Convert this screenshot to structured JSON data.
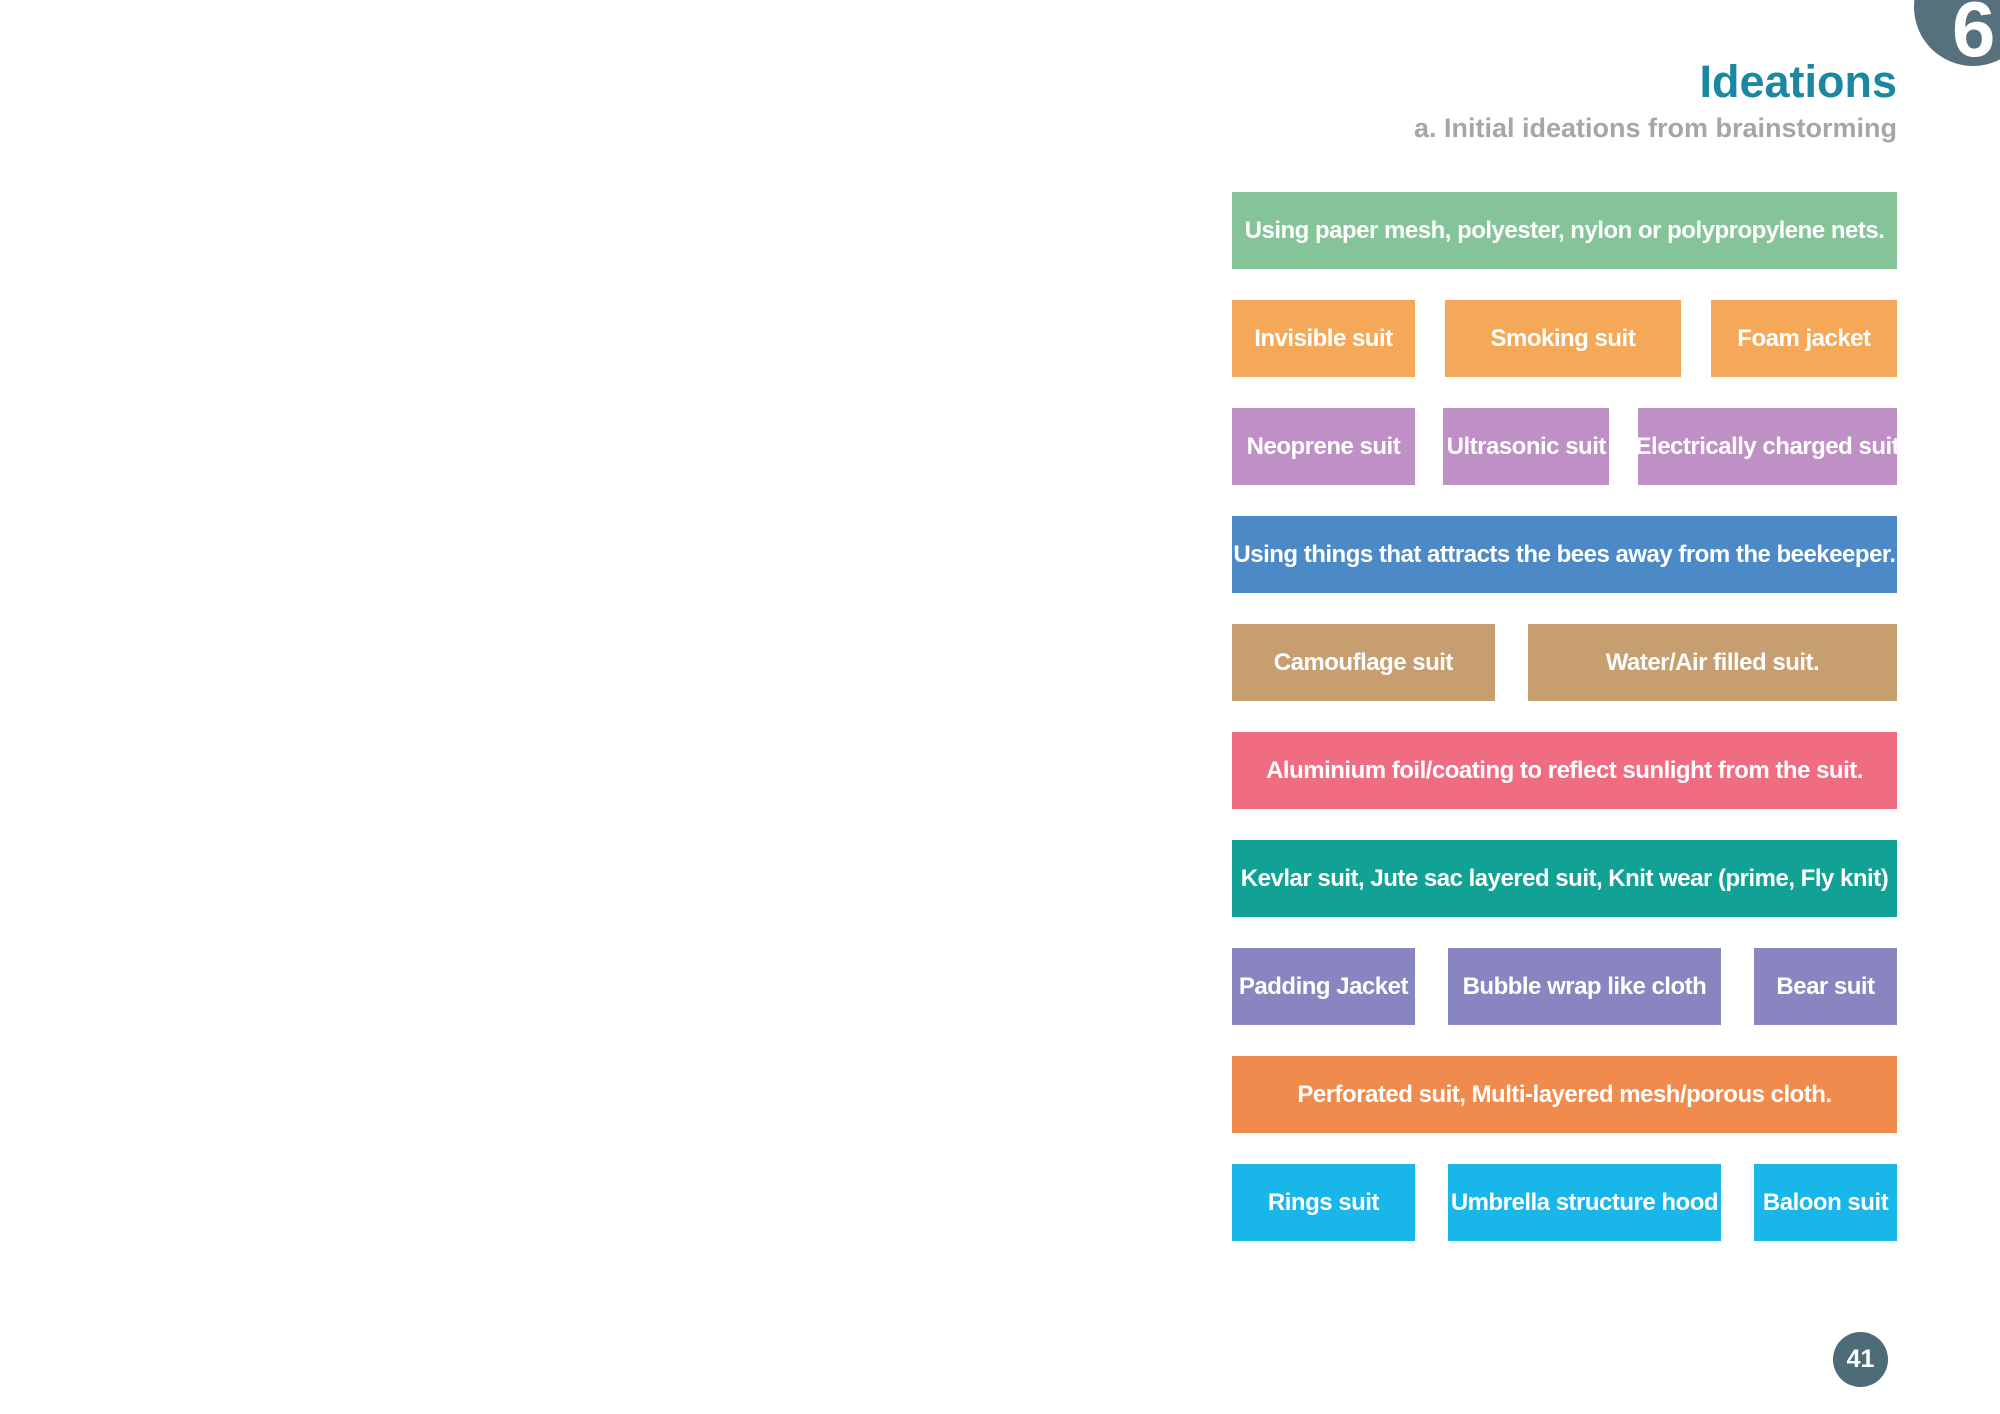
{
  "page": {
    "chapter_badge": "6",
    "page_number": "41",
    "header": {
      "title": "Ideations",
      "subtitle": "a. Initial ideations from brainstorming"
    }
  },
  "colors": {
    "title_teal": "#1b87a0",
    "subtitle_gray": "#a6a6a6",
    "corner_badge_slate": "#56707e",
    "page_badge_slate": "#4e6b79",
    "green": "#85c498",
    "orange": "#f5a958",
    "lilac": "#bf90c5",
    "blue": "#4b8ac7",
    "tan": "#c79e6f",
    "pink": "#f06c80",
    "teal": "#12a295",
    "periwinkle": "#8885c0",
    "dark_orange": "#f08b4d",
    "cyan": "#19b6e9"
  },
  "ideations": {
    "rows": [
      {
        "boxes": [
          {
            "label": "Using paper mesh, polyester, nylon or polypropylene nets."
          }
        ]
      },
      {
        "boxes": [
          {
            "label": "Invisible suit"
          },
          {
            "label": "Smoking suit"
          },
          {
            "label": "Foam jacket"
          }
        ]
      },
      {
        "boxes": [
          {
            "label": "Neoprene suit"
          },
          {
            "label": "Ultrasonic suit"
          },
          {
            "label": "Electrically charged suit"
          }
        ]
      },
      {
        "boxes": [
          {
            "label": "Using things that attracts the bees away from the beekeeper."
          }
        ]
      },
      {
        "boxes": [
          {
            "label": "Camouflage suit"
          },
          {
            "label": "Water/Air filled suit."
          }
        ]
      },
      {
        "boxes": [
          {
            "label": "Aluminium foil/coating to reflect sunlight from the suit."
          }
        ]
      },
      {
        "boxes": [
          {
            "label": "Kevlar suit, Jute sac layered suit, Knit wear (prime, Fly knit)"
          }
        ]
      },
      {
        "boxes": [
          {
            "label": "Padding Jacket"
          },
          {
            "label": "Bubble wrap like cloth"
          },
          {
            "label": "Bear suit"
          }
        ]
      },
      {
        "boxes": [
          {
            "label": "Perforated suit, Multi-layered mesh/porous cloth."
          }
        ]
      },
      {
        "boxes": [
          {
            "label": "Rings suit"
          },
          {
            "label": "Umbrella structure hood"
          },
          {
            "label": "Baloon suit"
          }
        ]
      }
    ]
  }
}
